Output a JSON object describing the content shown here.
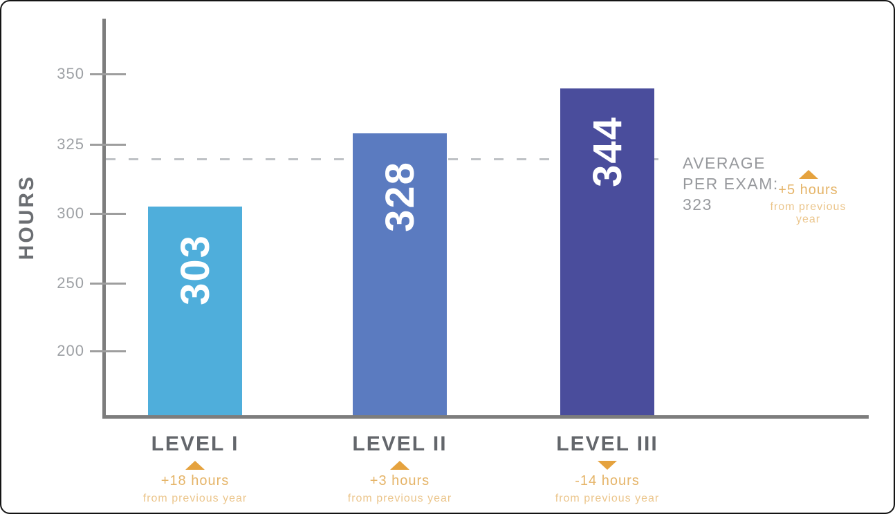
{
  "chart_data": {
    "type": "bar",
    "title": "",
    "xlabel": "",
    "ylabel": "HOURS",
    "categories": [
      "LEVEL I",
      "LEVEL II",
      "LEVEL III"
    ],
    "values": [
      303,
      328,
      344
    ],
    "bar_colors": [
      "#4FAEDB",
      "#5B7BC0",
      "#4A4D9C"
    ],
    "yticks": [
      350,
      325,
      300,
      250,
      200
    ],
    "axis_scale_note": "y-axis compressed below 300 (25-unit and 50-unit intervals drawn at equal spacing)",
    "grid": false,
    "legend": null,
    "average_line": {
      "value": 323,
      "style": "dashed",
      "color": "#8a9098"
    },
    "annotations": [
      {
        "target": "LEVEL I",
        "direction": "up",
        "change": "+18 hours",
        "note": "from previous year"
      },
      {
        "target": "LEVEL II",
        "direction": "up",
        "change": "+3 hours",
        "note": "from previous year"
      },
      {
        "target": "LEVEL III",
        "direction": "down",
        "change": "-14 hours",
        "note": "from previous year"
      },
      {
        "target": "AVERAGE PER EXAM",
        "direction": "up",
        "change": "+5 hours",
        "note": "from previous year"
      }
    ]
  },
  "axis": {
    "ylabel": "HOURS",
    "ticks": [
      "350",
      "325",
      "300",
      "250",
      "200"
    ]
  },
  "bars": [
    {
      "value": "303",
      "label": "LEVEL I",
      "delta": "+18 hours",
      "note": "from previous year",
      "direction": "up"
    },
    {
      "value": "328",
      "label": "LEVEL II",
      "delta": "+3 hours",
      "note": "from previous year",
      "direction": "up"
    },
    {
      "value": "344",
      "label": "LEVEL III",
      "delta": "-14 hours",
      "note": "from previous year",
      "direction": "down"
    }
  ],
  "average": {
    "line1": "AVERAGE",
    "line2": "PER EXAM:",
    "value": "323",
    "delta": "+5 hours",
    "note": "from previous year",
    "direction": "up"
  },
  "colors": {
    "bar_level_i": "#4FAEDB",
    "bar_level_ii": "#5B7BC0",
    "bar_level_iii": "#4A4D9C",
    "axis_line": "#7D7D7D",
    "tick_mark": "#9E9E9E",
    "tick_text": "#9DA0A4",
    "heading_gray": "#63666B",
    "muted_gray": "#97999D",
    "accent_orange": "#E5A23E",
    "bar_value_text": "#FFFFFF"
  }
}
